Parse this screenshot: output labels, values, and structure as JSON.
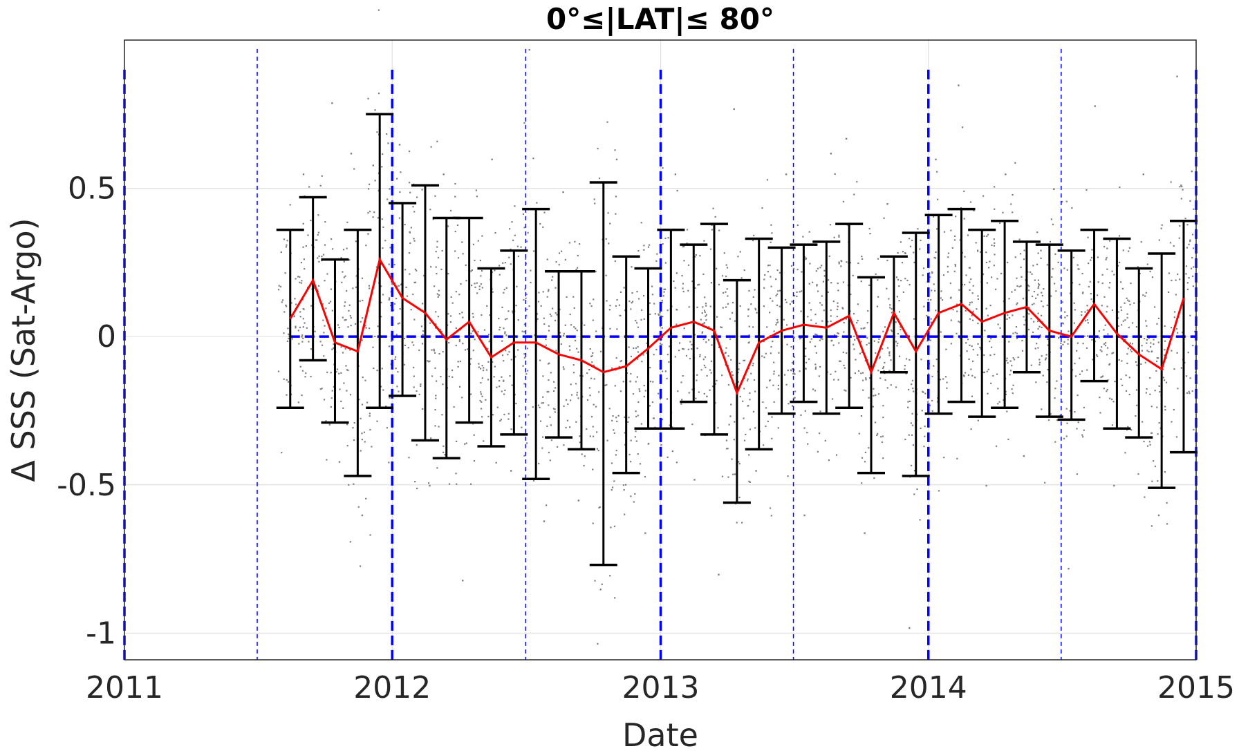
{
  "chart_data": {
    "type": "line",
    "title": "0°≤|LAT|≤ 80°",
    "xlabel": "Date",
    "ylabel": "Δ SSS (Sat-Argo)",
    "xlim": [
      "2011-01-01",
      "2015-01-01"
    ],
    "ylim": [
      -1.09,
      1.0
    ],
    "x_ticks": [
      {
        "value": "2011-01-01",
        "label": "2011"
      },
      {
        "value": "2012-01-01",
        "label": "2012"
      },
      {
        "value": "2013-01-01",
        "label": "2013"
      },
      {
        "value": "2014-01-01",
        "label": "2014"
      },
      {
        "value": "2015-01-01",
        "label": "2015"
      }
    ],
    "y_ticks": [
      {
        "value": 0.5,
        "label": "0.5"
      },
      {
        "value": 0,
        "label": "0"
      },
      {
        "value": -0.5,
        "label": "-0.5"
      },
      {
        "value": -1,
        "label": "-1"
      }
    ],
    "grid": true,
    "colors": {
      "mean_line": "#ff0000",
      "error_bars": "#000000",
      "scatter": "#7f7f7f",
      "reference_lines": "#0000ff",
      "grid": "#e0e0e0"
    },
    "reference_lines": {
      "horizontal_dashed": 0,
      "vertical_year_boundaries": [
        "2011-01-01",
        "2012-01-01",
        "2013-01-01",
        "2014-01-01",
        "2015-01-01"
      ],
      "vertical_half_years": [
        "2011-07-01",
        "2012-07-01",
        "2013-07-01",
        "2014-07-01"
      ]
    },
    "series": [
      {
        "kind": "monthly_mean_with_std",
        "points": [
          {
            "x": "2011-08-15",
            "y": 0.06,
            "low": -0.24,
            "high": 0.36
          },
          {
            "x": "2011-09-15",
            "y": 0.19,
            "low": -0.08,
            "high": 0.47
          },
          {
            "x": "2011-10-15",
            "y": -0.02,
            "low": -0.29,
            "high": 0.26
          },
          {
            "x": "2011-11-15",
            "y": -0.05,
            "low": -0.47,
            "high": 0.36
          },
          {
            "x": "2011-12-15",
            "y": 0.26,
            "low": -0.24,
            "high": 0.75
          },
          {
            "x": "2012-01-15",
            "y": 0.13,
            "low": -0.2,
            "high": 0.45
          },
          {
            "x": "2012-02-15",
            "y": 0.08,
            "low": -0.35,
            "high": 0.51
          },
          {
            "x": "2012-03-15",
            "y": -0.01,
            "low": -0.41,
            "high": 0.4
          },
          {
            "x": "2012-04-15",
            "y": 0.05,
            "low": -0.29,
            "high": 0.4
          },
          {
            "x": "2012-05-15",
            "y": -0.07,
            "low": -0.37,
            "high": 0.23
          },
          {
            "x": "2012-06-15",
            "y": -0.02,
            "low": -0.33,
            "high": 0.29
          },
          {
            "x": "2012-07-15",
            "y": -0.02,
            "low": -0.48,
            "high": 0.43
          },
          {
            "x": "2012-08-15",
            "y": -0.06,
            "low": -0.34,
            "high": 0.22
          },
          {
            "x": "2012-09-15",
            "y": -0.08,
            "low": -0.38,
            "high": 0.22
          },
          {
            "x": "2012-10-15",
            "y": -0.12,
            "low": -0.77,
            "high": 0.52
          },
          {
            "x": "2012-11-15",
            "y": -0.1,
            "low": -0.46,
            "high": 0.27
          },
          {
            "x": "2012-12-15",
            "y": -0.04,
            "low": -0.31,
            "high": 0.23
          },
          {
            "x": "2013-01-15",
            "y": 0.03,
            "low": -0.31,
            "high": 0.36
          },
          {
            "x": "2013-02-15",
            "y": 0.05,
            "low": -0.22,
            "high": 0.31
          },
          {
            "x": "2013-03-15",
            "y": 0.02,
            "low": -0.33,
            "high": 0.38
          },
          {
            "x": "2013-04-15",
            "y": -0.19,
            "low": -0.56,
            "high": 0.19
          },
          {
            "x": "2013-05-15",
            "y": -0.02,
            "low": -0.38,
            "high": 0.33
          },
          {
            "x": "2013-06-15",
            "y": 0.02,
            "low": -0.26,
            "high": 0.3
          },
          {
            "x": "2013-07-15",
            "y": 0.04,
            "low": -0.22,
            "high": 0.31
          },
          {
            "x": "2013-08-15",
            "y": 0.03,
            "low": -0.26,
            "high": 0.32
          },
          {
            "x": "2013-09-15",
            "y": 0.07,
            "low": -0.24,
            "high": 0.38
          },
          {
            "x": "2013-10-15",
            "y": -0.12,
            "low": -0.46,
            "high": 0.2
          },
          {
            "x": "2013-11-15",
            "y": 0.08,
            "low": -0.12,
            "high": 0.27
          },
          {
            "x": "2013-12-15",
            "y": -0.05,
            "low": -0.47,
            "high": 0.35
          },
          {
            "x": "2014-01-15",
            "y": 0.08,
            "low": -0.26,
            "high": 0.41
          },
          {
            "x": "2014-02-15",
            "y": 0.11,
            "low": -0.22,
            "high": 0.43
          },
          {
            "x": "2014-03-15",
            "y": 0.05,
            "low": -0.27,
            "high": 0.36
          },
          {
            "x": "2014-04-15",
            "y": 0.08,
            "low": -0.24,
            "high": 0.39
          },
          {
            "x": "2014-05-15",
            "y": 0.1,
            "low": -0.12,
            "high": 0.32
          },
          {
            "x": "2014-06-15",
            "y": 0.02,
            "low": -0.27,
            "high": 0.31
          },
          {
            "x": "2014-07-15",
            "y": 0.0,
            "low": -0.28,
            "high": 0.29
          },
          {
            "x": "2014-08-15",
            "y": 0.11,
            "low": -0.15,
            "high": 0.36
          },
          {
            "x": "2014-09-15",
            "y": 0.01,
            "low": -0.31,
            "high": 0.33
          },
          {
            "x": "2014-10-15",
            "y": -0.06,
            "low": -0.34,
            "high": 0.23
          },
          {
            "x": "2014-11-15",
            "y": -0.11,
            "low": -0.51,
            "high": 0.28
          },
          {
            "x": "2014-12-15",
            "y": 0.13,
            "low": -0.39,
            "high": 0.39
          }
        ]
      }
    ],
    "scatter_note_points": [
      {
        "x": "2011-09-01",
        "y": 0.55
      },
      {
        "x": "2011-10-10",
        "y": 0.79
      },
      {
        "x": "2011-10-20",
        "y": -0.42
      },
      {
        "x": "2011-11-05",
        "y": 0.62
      },
      {
        "x": "2011-11-20",
        "y": -0.6
      },
      {
        "x": "2011-12-05",
        "y": 0.58
      },
      {
        "x": "2012-01-10",
        "y": 0.65
      },
      {
        "x": "2012-02-20",
        "y": -0.5
      },
      {
        "x": "2012-03-10",
        "y": 0.55
      },
      {
        "x": "2012-04-05",
        "y": -0.82
      },
      {
        "x": "2012-05-15",
        "y": 0.6
      },
      {
        "x": "2012-06-10",
        "y": -0.45
      },
      {
        "x": "2012-07-05",
        "y": 0.97
      },
      {
        "x": "2012-07-25",
        "y": -0.62
      },
      {
        "x": "2012-08-20",
        "y": 0.49
      },
      {
        "x": "2012-09-10",
        "y": -0.55
      },
      {
        "x": "2012-10-10",
        "y": -0.85
      },
      {
        "x": "2012-11-01",
        "y": 0.6
      },
      {
        "x": "2012-12-10",
        "y": -0.66
      },
      {
        "x": "2013-01-20",
        "y": 0.55
      },
      {
        "x": "2013-02-15",
        "y": -0.48
      },
      {
        "x": "2013-03-20",
        "y": -0.8
      },
      {
        "x": "2013-04-10",
        "y": 0.77
      },
      {
        "x": "2013-05-10",
        "y": -0.45
      },
      {
        "x": "2013-06-20",
        "y": 0.55
      },
      {
        "x": "2013-07-15",
        "y": -0.6
      },
      {
        "x": "2013-08-20",
        "y": 0.62
      },
      {
        "x": "2013-09-10",
        "y": 0.67
      },
      {
        "x": "2013-10-05",
        "y": -0.66
      },
      {
        "x": "2013-11-05",
        "y": 0.45
      },
      {
        "x": "2013-12-05",
        "y": -0.98
      },
      {
        "x": "2014-01-10",
        "y": 0.6
      },
      {
        "x": "2014-02-10",
        "y": 0.85
      },
      {
        "x": "2014-03-20",
        "y": -0.5
      },
      {
        "x": "2014-04-15",
        "y": 0.55
      },
      {
        "x": "2014-05-10",
        "y": -0.4
      },
      {
        "x": "2014-06-20",
        "y": 0.5
      },
      {
        "x": "2014-07-10",
        "y": -0.78
      },
      {
        "x": "2014-08-15",
        "y": 0.78
      },
      {
        "x": "2014-09-10",
        "y": -0.5
      },
      {
        "x": "2014-10-20",
        "y": 0.55
      },
      {
        "x": "2014-11-10",
        "y": -0.6
      },
      {
        "x": "2014-12-05",
        "y": 0.88
      },
      {
        "x": "2014-12-25",
        "y": 0.56
      }
    ]
  }
}
